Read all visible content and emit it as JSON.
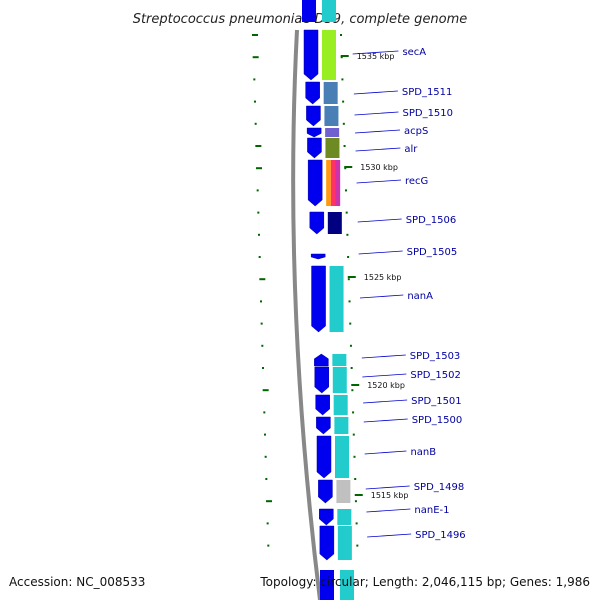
{
  "title": "Streptococcus pneumoniae D39, complete genome",
  "accession": "Accession: NC_008533",
  "summary": "Topology: circular; Length: 2,046,115 bp; Genes: 1,986",
  "colors": {
    "backbone": "#888888",
    "gene_arrow": "#0000ee",
    "label_text": "#0000a0",
    "tick": "#006600"
  },
  "kbp_markers": [
    "1535 kbp",
    "1530 kbp",
    "1525 kbp",
    "1520 kbp",
    "1515 kbp"
  ],
  "genes": [
    {
      "label": "secA",
      "cog_colors": [
        "#99ee22"
      ]
    },
    {
      "label": "SPD_1511",
      "cog_colors": [
        "#4a7fb5"
      ]
    },
    {
      "label": "SPD_1510",
      "cog_colors": [
        "#4a7fb5"
      ]
    },
    {
      "label": "acpS",
      "cog_colors": [
        "#7060d0"
      ]
    },
    {
      "label": "alr",
      "cog_colors": [
        "#6e8a22"
      ]
    },
    {
      "label": "recG",
      "cog_colors": [
        "#ff9a10",
        "#ff3366",
        "#cc33aa"
      ]
    },
    {
      "label": "SPD_1506",
      "cog_colors": [
        "#000080"
      ]
    },
    {
      "label": "SPD_1505",
      "cog_colors": []
    },
    {
      "label": "nanA",
      "cog_colors": [
        "#22cccc"
      ]
    },
    {
      "label": "SPD_1503",
      "cog_colors": [
        "#22cccc"
      ]
    },
    {
      "label": "SPD_1502",
      "cog_colors": [
        "#22cccc"
      ]
    },
    {
      "label": "SPD_1501",
      "cog_colors": [
        "#22cccc"
      ]
    },
    {
      "label": "SPD_1500",
      "cog_colors": [
        "#22cccc"
      ]
    },
    {
      "label": "nanB",
      "cog_colors": [
        "#22cccc"
      ]
    },
    {
      "label": "SPD_1498",
      "cog_colors": [
        "#c0c0c0"
      ]
    },
    {
      "label": "nanE-1",
      "cog_colors": [
        "#22cccc"
      ]
    },
    {
      "label": "SPD_1496",
      "cog_colors": [
        "#22cccc"
      ]
    }
  ]
}
